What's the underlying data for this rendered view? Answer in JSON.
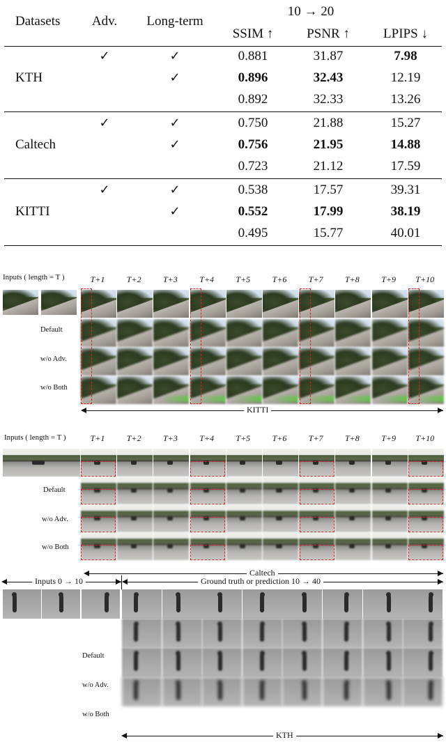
{
  "table": {
    "header": {
      "datasets": "Datasets",
      "adv": "Adv.",
      "long_term": "Long-term",
      "span": "10 → 20",
      "ssim": "SSIM ↑",
      "psnr": "PSNR ↑",
      "lpips": "LPIPS ↓"
    },
    "groups": [
      {
        "name": "KTH",
        "rows": [
          {
            "adv": "✓",
            "long": "✓",
            "ssim": "0.881",
            "psnr": "31.87",
            "lpips": "7.98",
            "bold": [
              false,
              false,
              true
            ]
          },
          {
            "adv": "",
            "long": "✓",
            "ssim": "0.896",
            "psnr": "32.43",
            "lpips": "12.19",
            "bold": [
              true,
              true,
              false
            ]
          },
          {
            "adv": "",
            "long": "",
            "ssim": "0.892",
            "psnr": "32.33",
            "lpips": "13.26",
            "bold": [
              false,
              false,
              false
            ]
          }
        ]
      },
      {
        "name": "Caltech",
        "rows": [
          {
            "adv": "✓",
            "long": "✓",
            "ssim": "0.750",
            "psnr": "21.88",
            "lpips": "15.27",
            "bold": [
              false,
              false,
              false
            ]
          },
          {
            "adv": "",
            "long": "✓",
            "ssim": "0.756",
            "psnr": "21.95",
            "lpips": "14.88",
            "bold": [
              true,
              true,
              true
            ]
          },
          {
            "adv": "",
            "long": "",
            "ssim": "0.723",
            "psnr": "21.12",
            "lpips": "17.59",
            "bold": [
              false,
              false,
              false
            ]
          }
        ]
      },
      {
        "name": "KITTI",
        "rows": [
          {
            "adv": "✓",
            "long": "✓",
            "ssim": "0.538",
            "psnr": "17.57",
            "lpips": "39.31",
            "bold": [
              false,
              false,
              false
            ]
          },
          {
            "adv": "",
            "long": "✓",
            "ssim": "0.552",
            "psnr": "17.99",
            "lpips": "38.19",
            "bold": [
              true,
              true,
              true
            ]
          },
          {
            "adv": "",
            "long": "",
            "ssim": "0.495",
            "psnr": "15.77",
            "lpips": "40.01",
            "bold": [
              false,
              false,
              false
            ]
          }
        ]
      }
    ]
  },
  "kitti_panel": {
    "inputs_label": "Inputs  ( length = T )",
    "time_labels": [
      "T+1",
      "T+2",
      "T+3",
      "T+4",
      "T+5",
      "T+6",
      "T+7",
      "T+8",
      "T+9",
      "T+10"
    ],
    "row_labels": [
      "Default",
      "w/o Adv.",
      "w/o Both"
    ],
    "caption": "KITTI"
  },
  "caltech_panel": {
    "inputs_label": "Inputs  ( length = T )",
    "time_labels": [
      "T+1",
      "T+2",
      "T+3",
      "T+4",
      "T+5",
      "T+6",
      "T+7",
      "T+8",
      "T+9",
      "T+10"
    ],
    "row_labels": [
      "Default",
      "w/o Adv.",
      "w/o Both"
    ],
    "caption": "Caltech"
  },
  "kth_panel": {
    "inputs_label": "Inputs   0 → 10",
    "gt_label": "Ground truth or prediction  10 → 40",
    "row_labels": [
      "Default",
      "w/o Adv.",
      "w/o Both"
    ],
    "caption": "KTH"
  }
}
